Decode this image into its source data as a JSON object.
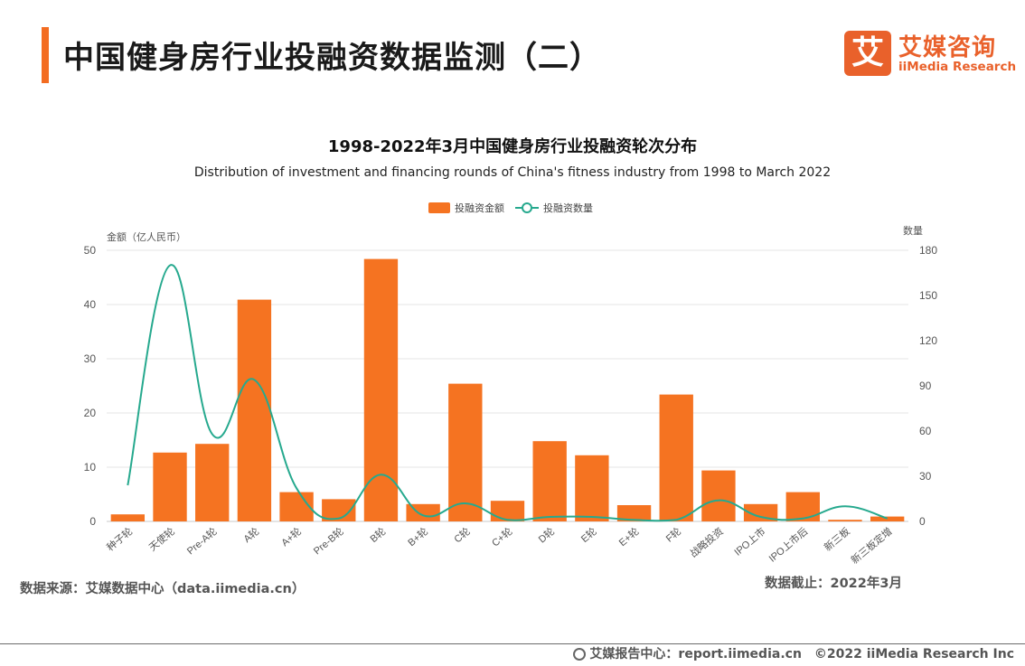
{
  "header": {
    "title": "中国健身房行业投融资数据监测（二）",
    "logo_mark": "艾",
    "logo_cn": "艾媒咨询",
    "logo_en": "iiMedia Research"
  },
  "chart_data": {
    "type": "bar",
    "title": "1998-2022年3月中国健身房行业投融资轮次分布",
    "subtitle": "Distribution of investment and financing rounds of China's fitness industry from 1998 to March 2022",
    "categories": [
      "种子轮",
      "天使轮",
      "Pre-A轮",
      "A轮",
      "A+轮",
      "Pre-B轮",
      "B轮",
      "B+轮",
      "C轮",
      "C+轮",
      "D轮",
      "E轮",
      "E+轮",
      "F轮",
      "战略投资",
      "IPO上市",
      "IPO上市后",
      "新三板",
      "新三板定增"
    ],
    "series": [
      {
        "name": "投融资金额",
        "type": "bar",
        "axis": "left",
        "color": "#f57321",
        "values": [
          1.3,
          12.7,
          14.3,
          40.9,
          5.4,
          4.1,
          48.4,
          3.2,
          25.4,
          3.8,
          14.8,
          12.2,
          3.0,
          23.4,
          9.4,
          3.2,
          5.4,
          0.3,
          0.9
        ]
      },
      {
        "name": "投融资数量",
        "type": "line",
        "axis": "right",
        "color": "#26a98e",
        "values": [
          24,
          170,
          58,
          94,
          22,
          2,
          31,
          4,
          12,
          1,
          3,
          3,
          1,
          1,
          14,
          3,
          2,
          10,
          2
        ]
      }
    ],
    "ylabel": "金额（亿人民币）",
    "y2label": "数量",
    "ylim": [
      0,
      50
    ],
    "yticks": [
      0,
      10,
      20,
      30,
      40,
      50
    ],
    "y2lim": [
      0,
      180
    ],
    "y2ticks": [
      0,
      30,
      60,
      90,
      120,
      150,
      180
    ],
    "grid": true,
    "legend": "top-center"
  },
  "footer": {
    "source": "数据来源：艾媒数据中心（data.iimedia.cn）",
    "cutoff": "数据截止：2022年3月",
    "site": "艾媒报告中心：report.iimedia.cn",
    "copyright": "©2022  iiMedia Research  Inc"
  }
}
